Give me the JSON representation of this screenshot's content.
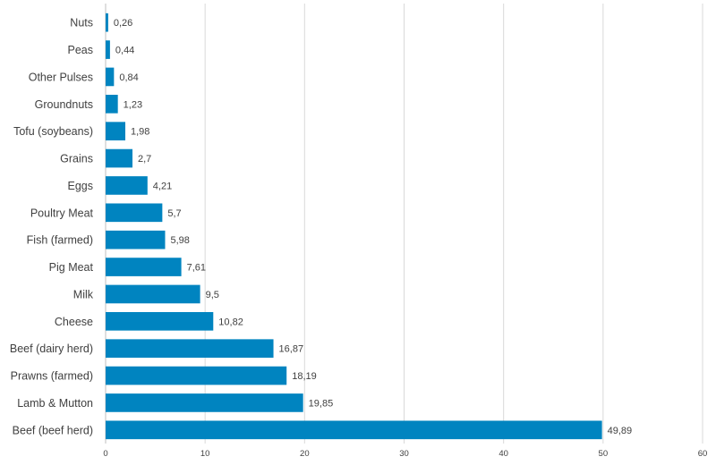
{
  "chart_data": {
    "type": "bar",
    "orientation": "horizontal",
    "title": "",
    "xlabel": "",
    "ylabel": "",
    "categories": [
      "Nuts",
      "Peas",
      "Other Pulses",
      "Groundnuts",
      "Tofu (soybeans)",
      "Grains",
      "Eggs",
      "Poultry Meat",
      "Fish (farmed)",
      "Pig Meat",
      "Milk",
      "Cheese",
      "Beef (dairy herd)",
      "Prawns (farmed)",
      "Lamb & Mutton",
      "Beef (beef herd)"
    ],
    "values": [
      0.26,
      0.44,
      0.84,
      1.23,
      1.98,
      2.7,
      4.21,
      5.7,
      5.98,
      7.61,
      9.5,
      10.82,
      16.87,
      18.19,
      19.85,
      49.89
    ],
    "value_labels": [
      "0,26",
      "0,44",
      "0,84",
      "1,23",
      "1,98",
      "2,7",
      "4,21",
      "5,7",
      "5,98",
      "7,61",
      "9,5",
      "10,82",
      "16,87",
      "18,19",
      "19,85",
      "49,89"
    ],
    "xlim": [
      0,
      60
    ],
    "x_ticks": [
      0,
      10,
      20,
      30,
      40,
      50,
      60
    ],
    "x_tick_labels": [
      "0",
      "10",
      "20",
      "30",
      "40",
      "50",
      "60"
    ],
    "grid": true,
    "legend": "none",
    "bar_color": "#0084c0"
  }
}
